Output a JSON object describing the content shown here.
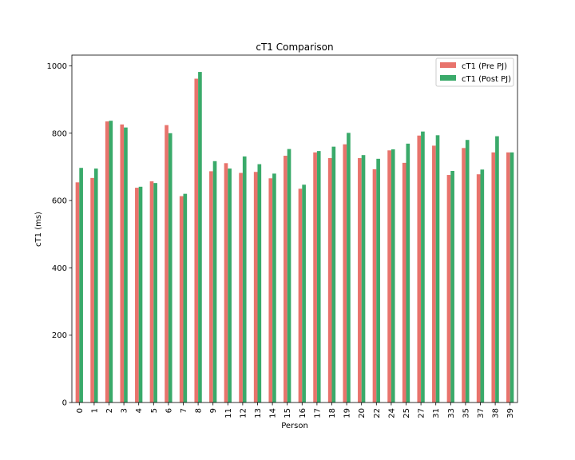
{
  "chart_data": {
    "type": "bar",
    "title": "cT1 Comparison",
    "xlabel": "Person",
    "ylabel": "cT1 (ms)",
    "ylim": [
      0,
      1032
    ],
    "yticks": [
      0,
      200,
      400,
      600,
      800,
      1000
    ],
    "grid": false,
    "legend_position": "top-right",
    "categories": [
      "0",
      "1",
      "2",
      "3",
      "4",
      "5",
      "6",
      "7",
      "8",
      "9",
      "11",
      "12",
      "13",
      "14",
      "15",
      "16",
      "17",
      "18",
      "19",
      "20",
      "22",
      "24",
      "25",
      "27",
      "31",
      "33",
      "35",
      "37",
      "38",
      "39"
    ],
    "series": [
      {
        "name": "cT1 (Pre PJ)",
        "color": "#e8736c",
        "values": [
          654,
          667,
          835,
          826,
          638,
          657,
          824,
          613,
          962,
          687,
          711,
          682,
          685,
          666,
          733,
          635,
          743,
          726,
          767,
          726,
          693,
          749,
          712,
          793,
          763,
          676,
          756,
          678,
          743,
          743
        ]
      },
      {
        "name": "cT1 (Post PJ)",
        "color": "#3aaa6a",
        "values": [
          697,
          695,
          837,
          817,
          641,
          652,
          800,
          620,
          982,
          717,
          695,
          731,
          708,
          680,
          753,
          647,
          747,
          760,
          801,
          735,
          724,
          752,
          769,
          805,
          794,
          688,
          780,
          692,
          791,
          743
        ]
      }
    ]
  }
}
